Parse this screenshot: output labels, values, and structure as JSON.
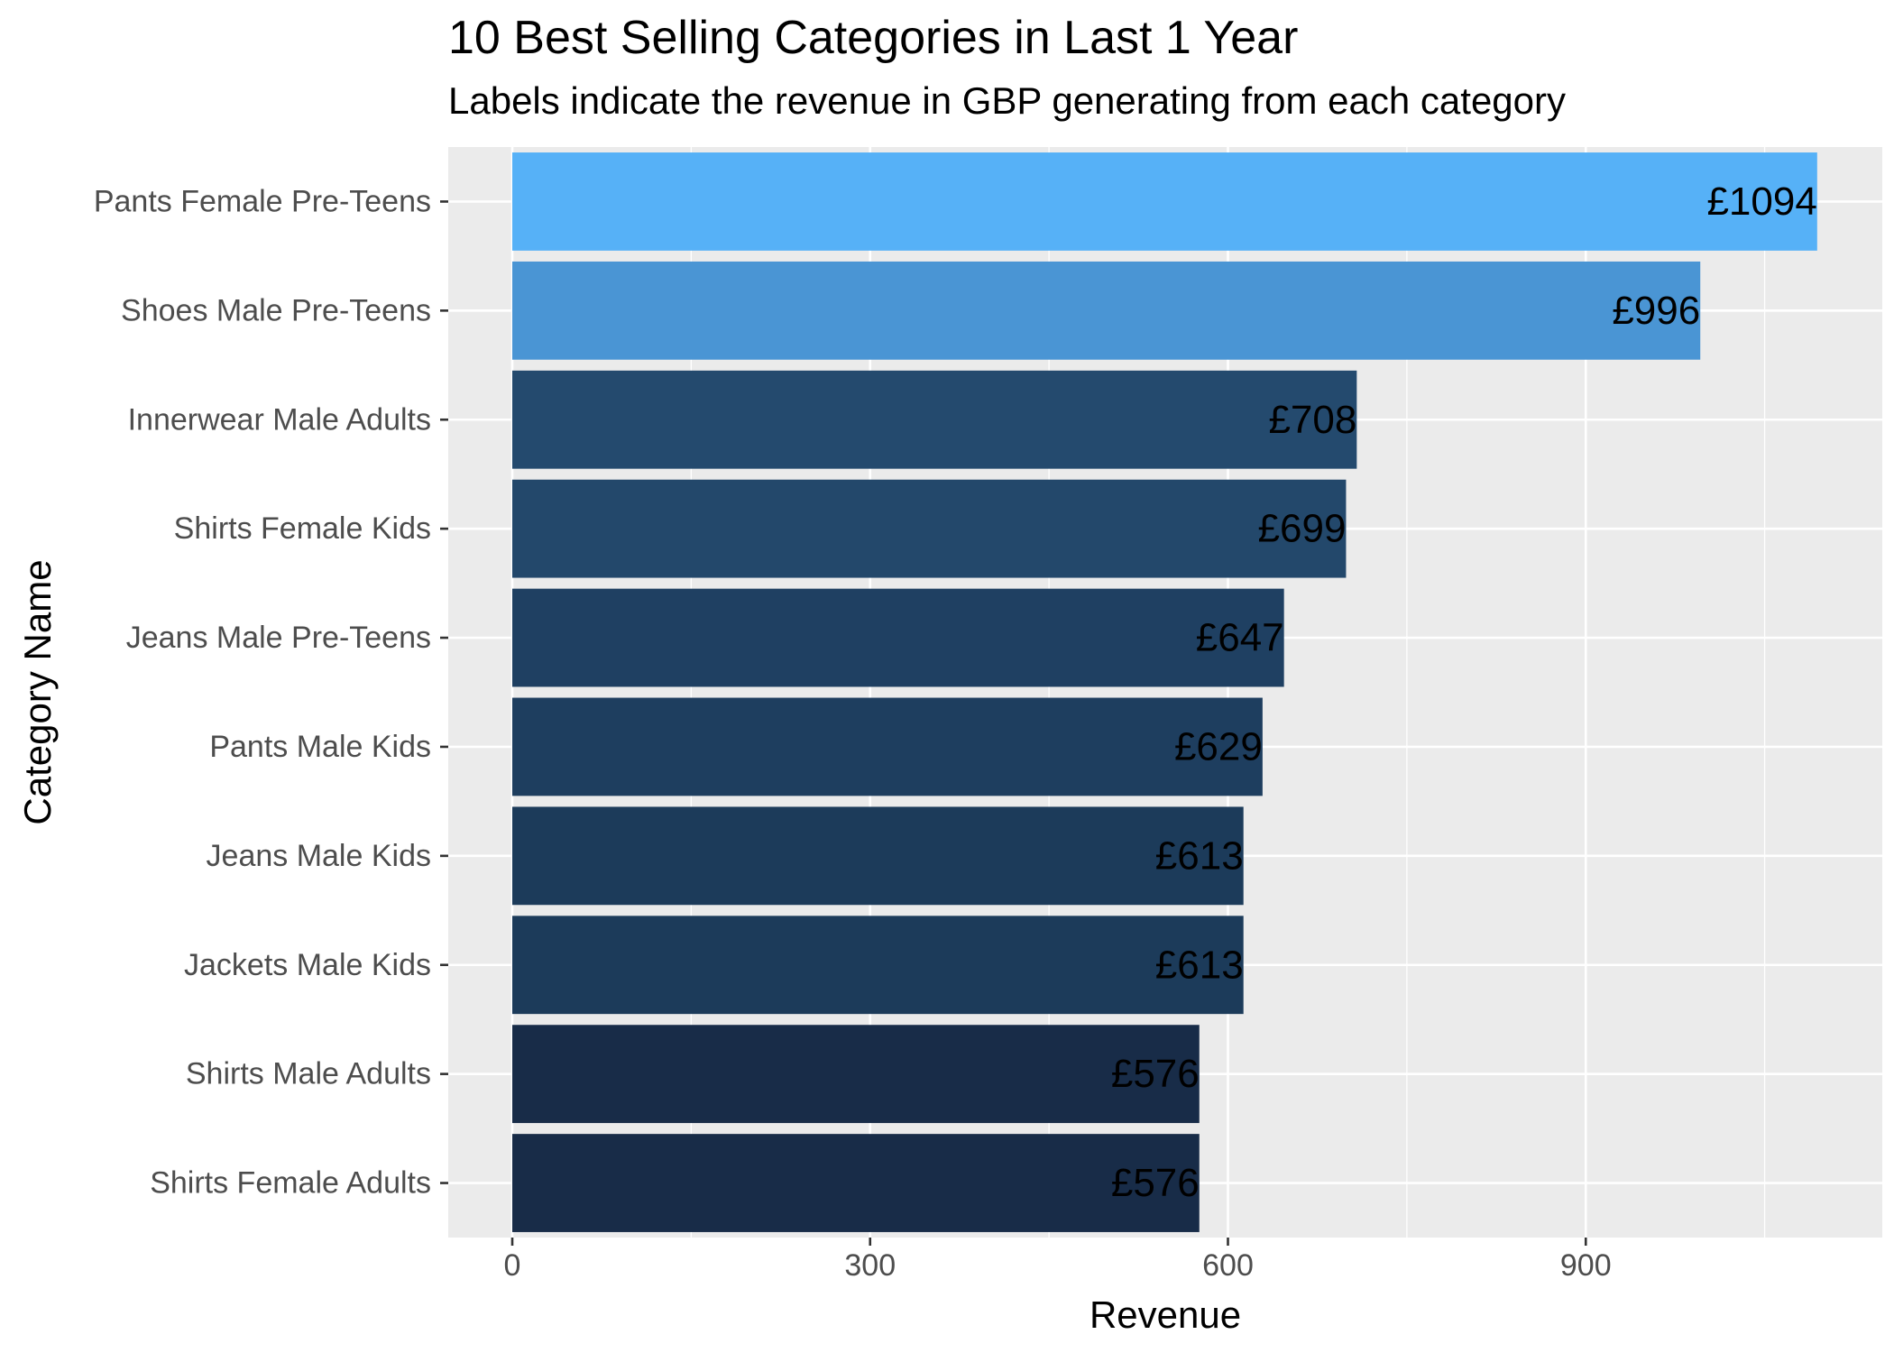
{
  "chart_data": {
    "type": "bar",
    "orientation": "horizontal",
    "title": "10 Best Selling Categories in Last 1 Year",
    "subtitle": "Labels indicate the revenue in GBP generating from each category",
    "xlabel": "Revenue",
    "ylabel": "Category Name",
    "xlim": [
      0,
      1094
    ],
    "xticks": [
      0,
      300,
      600,
      900
    ],
    "grid": true,
    "categories": [
      "Pants Female Pre-Teens",
      "Shoes Male Pre-Teens",
      "Innerwear Male Adults",
      "Shirts Female Kids",
      "Jeans Male Pre-Teens",
      "Pants Male Kids",
      "Jeans Male Kids",
      "Jackets Male Kids",
      "Shirts Male Adults",
      "Shirts Female Adults"
    ],
    "values": [
      1094,
      996,
      708,
      699,
      647,
      629,
      613,
      613,
      576,
      576
    ],
    "labels": [
      "£1094",
      "£996",
      "£708",
      "£699",
      "£647",
      "£629",
      "£613",
      "£613",
      "£576",
      "£576"
    ],
    "colors": [
      "#56b1f7",
      "#4a95d4",
      "#244a6e",
      "#23486b",
      "#1f4062",
      "#1e3e5f",
      "#1c3b5a",
      "#1c3b5a",
      "#182c48",
      "#182c48"
    ],
    "panel_background": "#ebebeb",
    "gridline_color": "#ffffff"
  }
}
